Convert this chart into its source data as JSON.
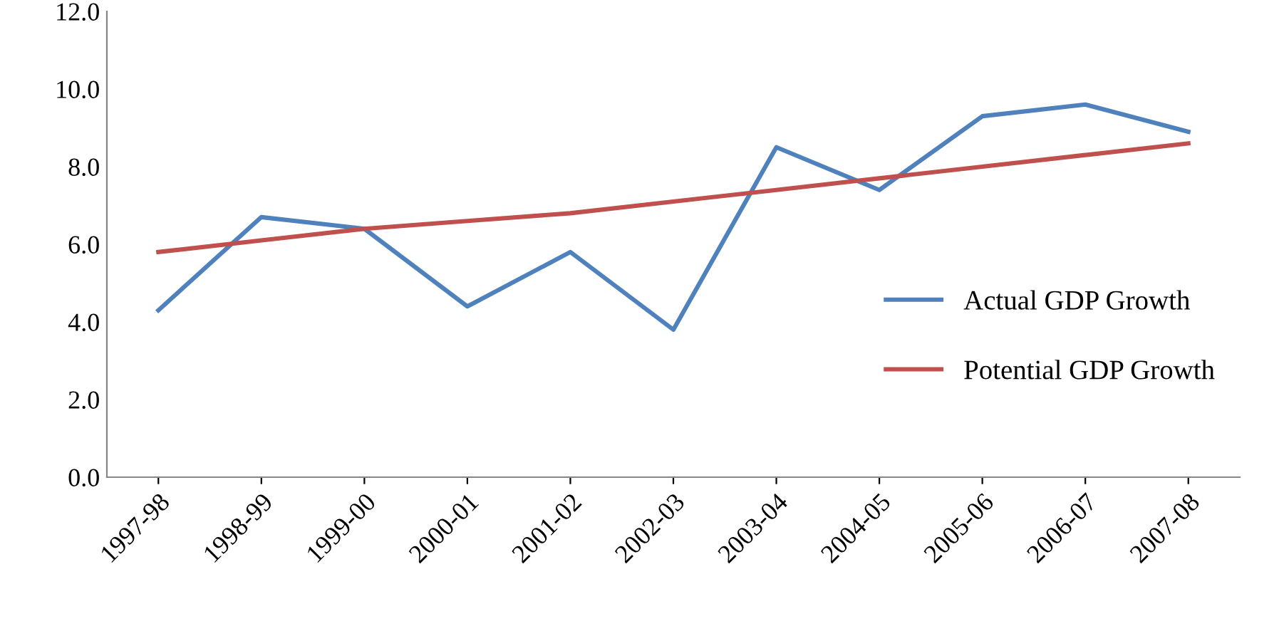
{
  "chart_data": {
    "type": "line",
    "categories": [
      "1997-98",
      "1998-99",
      "1999-00",
      "2000-01",
      "2001-02",
      "2002-03",
      "2003-04",
      "2004-05",
      "2005-06",
      "2006-07",
      "2007-08"
    ],
    "series": [
      {
        "name": "Actual GDP Growth",
        "color": "#4f81bd",
        "values": [
          4.3,
          6.7,
          6.4,
          4.4,
          5.8,
          3.8,
          8.5,
          7.4,
          9.3,
          9.6,
          8.9
        ]
      },
      {
        "name": "Potential GDP Growth",
        "color": "#c0504d",
        "values": [
          5.8,
          6.1,
          6.4,
          6.6,
          6.8,
          7.1,
          7.4,
          7.7,
          8.0,
          8.3,
          8.6
        ]
      }
    ],
    "ylim": [
      0,
      12
    ],
    "yticks": [
      {
        "value": 0,
        "label": "0.0"
      },
      {
        "value": 2,
        "label": "2.0"
      },
      {
        "value": 4,
        "label": "4.0"
      },
      {
        "value": 6,
        "label": "6.0"
      },
      {
        "value": 8,
        "label": "8.0"
      },
      {
        "value": 10,
        "label": "10.0"
      },
      {
        "value": 12,
        "label": "12.0"
      }
    ],
    "grid": false,
    "legend": "right",
    "marker": "none",
    "line_style": "solid"
  }
}
